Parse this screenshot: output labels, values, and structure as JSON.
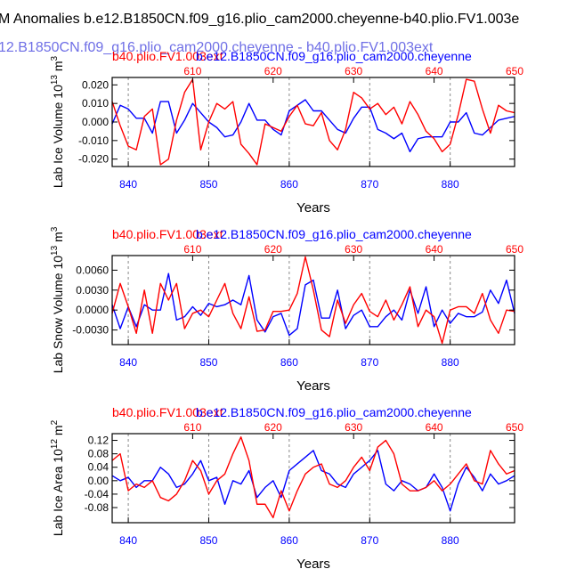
{
  "figure": {
    "main_title": "M Anomalies b.e12.B1850CN.f09_g16.plio_cam2000.cheyenne-b40.plio.FV1.003e",
    "overlay_title": "12.B1850CN.f09_g16.plio_cam2000.cheyenne - b40.plio.FV1.003ext",
    "colors": {
      "red": "#ff0000",
      "blue": "#0000ff",
      "overlay": "#6f6fe6",
      "axis": "#000000",
      "grid": "#888888"
    }
  },
  "chart_data": [
    {
      "type": "line",
      "id": "ice-volume",
      "ylabel_main": "Lab Ice Volume 10",
      "ylabel_exp": "13",
      "ylabel_unit": " m",
      "ylabel_unit_exp": "3",
      "xlabel": "Years",
      "top_title_red": "b40.plio.FV1.003ext",
      "top_title_blue": "b.e12.B1850CN.f09_g16.plio_cam2000.cheyenne",
      "bottom_axis_range": [
        838,
        888
      ],
      "bottom_ticks": [
        840,
        850,
        860,
        870,
        880
      ],
      "top_axis_range": [
        600,
        650
      ],
      "top_ticks": [
        610,
        620,
        630,
        640,
        650
      ],
      "ylim": [
        -0.024,
        0.024
      ],
      "yticks": [
        -0.02,
        -0.01,
        0.0,
        0.01,
        0.02
      ],
      "ytick_labels": [
        "-0.020",
        "-0.010",
        "0.000",
        "0.010",
        "0.020"
      ],
      "grid_x": [
        840,
        850,
        860,
        870,
        880
      ],
      "series": [
        {
          "name": "b.e12.B1850CN.f09_g16.plio_cam2000.cheyenne",
          "axis": "bottom",
          "color": "blue",
          "x": [
            838,
            839,
            840,
            841,
            842,
            843,
            844,
            845,
            846,
            847,
            848,
            849,
            850,
            851,
            852,
            853,
            854,
            855,
            856,
            857,
            858,
            859,
            860,
            861,
            862,
            863,
            864,
            865,
            866,
            867,
            868,
            869,
            870,
            871,
            872,
            873,
            874,
            875,
            876,
            877,
            878,
            879,
            880,
            881,
            882,
            883,
            884,
            885,
            886,
            887,
            888
          ],
          "y": [
            -0.001,
            0.009,
            0.007,
            0.002,
            0.002,
            -0.006,
            0.011,
            0.011,
            -0.006,
            0.001,
            0.01,
            0.005,
            0.0,
            -0.003,
            -0.008,
            -0.007,
            0.0,
            0.01,
            0.001,
            0.001,
            -0.004,
            -0.007,
            0.006,
            0.009,
            0.012,
            0.006,
            0.006,
            0.001,
            -0.004,
            -0.006,
            0.002,
            0.008,
            0.008,
            -0.004,
            -0.006,
            -0.009,
            -0.006,
            -0.016,
            -0.009,
            -0.008,
            -0.008,
            -0.008,
            0.0,
            0.0,
            0.005,
            -0.006,
            -0.007,
            -0.003,
            0.001,
            0.002,
            0.003
          ]
        },
        {
          "name": "b40.plio.FV1.003ext",
          "axis": "top",
          "color": "red",
          "x": [
            600,
            601,
            602,
            603,
            604,
            605,
            606,
            607,
            608,
            609,
            610,
            611,
            612,
            613,
            614,
            615,
            616,
            617,
            618,
            619,
            620,
            621,
            622,
            623,
            624,
            625,
            626,
            627,
            628,
            629,
            630,
            631,
            632,
            633,
            634,
            635,
            636,
            637,
            638,
            639,
            640,
            641,
            642,
            643,
            644,
            645,
            646,
            647,
            648,
            649,
            650
          ],
          "y": [
            0.011,
            -0.002,
            -0.013,
            -0.015,
            0.003,
            0.007,
            -0.023,
            -0.02,
            0.001,
            0.016,
            0.023,
            -0.015,
            0.0,
            0.01,
            0.007,
            0.011,
            -0.012,
            -0.017,
            -0.023,
            -0.001,
            -0.003,
            -0.005,
            0.003,
            0.009,
            -0.001,
            -0.002,
            0.005,
            -0.01,
            -0.015,
            -0.004,
            0.016,
            0.013,
            0.007,
            0.01,
            0.004,
            0.008,
            -0.001,
            0.011,
            0.004,
            -0.005,
            -0.009,
            -0.016,
            -0.012,
            0.004,
            0.023,
            0.022,
            0.007,
            -0.006,
            0.009,
            0.006,
            0.005
          ]
        }
      ]
    },
    {
      "type": "line",
      "id": "snow-volume",
      "ylabel_main": "Lab Snow Volume 10",
      "ylabel_exp": "13",
      "ylabel_unit": " m",
      "ylabel_unit_exp": "3",
      "xlabel": "Years",
      "top_title_red": "b40.plio.FV1.003ext",
      "top_title_blue": "b.e12.B1850CN.f09_g16.plio_cam2000.cheyenne",
      "bottom_axis_range": [
        838,
        888
      ],
      "bottom_ticks": [
        840,
        850,
        860,
        870,
        880
      ],
      "top_axis_range": [
        600,
        650
      ],
      "top_ticks": [
        610,
        620,
        630,
        640,
        650
      ],
      "ylim": [
        -0.0052,
        0.0082
      ],
      "yticks": [
        -0.003,
        0.0,
        0.003,
        0.006
      ],
      "ytick_labels": [
        "-0.0030",
        "0.0000",
        "0.0030",
        "0.0060"
      ],
      "grid_x": [
        840,
        850,
        860,
        870,
        880
      ],
      "series": [
        {
          "name": "b.e12.B1850CN.f09_g16.plio_cam2000.cheyenne",
          "axis": "bottom",
          "color": "blue",
          "x": [
            838,
            839,
            840,
            841,
            842,
            843,
            844,
            845,
            846,
            847,
            848,
            849,
            850,
            851,
            852,
            853,
            854,
            855,
            856,
            857,
            858,
            859,
            860,
            861,
            862,
            863,
            864,
            865,
            866,
            867,
            868,
            869,
            870,
            871,
            872,
            873,
            874,
            875,
            876,
            877,
            878,
            879,
            880,
            881,
            882,
            883,
            884,
            885,
            886,
            887,
            888
          ],
          "y": [
            0.0008,
            -0.0028,
            0.0005,
            -0.0025,
            0.0008,
            0.0,
            0.0,
            0.0055,
            -0.0015,
            -0.001,
            0.0005,
            -0.0008,
            0.001,
            0.0005,
            0.0008,
            0.0015,
            0.0008,
            0.0052,
            -0.0015,
            -0.0033,
            -0.001,
            -0.0005,
            -0.0038,
            -0.0028,
            0.0038,
            0.0045,
            -0.0012,
            -0.0012,
            0.003,
            -0.0028,
            -0.0008,
            0.0,
            -0.0025,
            -0.0025,
            -0.001,
            0.0,
            -0.0015,
            0.003,
            -0.0005,
            0.0035,
            -0.0025,
            0.0,
            -0.002,
            -0.0005,
            -0.001,
            -0.001,
            -0.0003,
            0.003,
            0.001,
            0.0045,
            -0.0005
          ]
        },
        {
          "name": "b40.plio.FV1.003ext",
          "axis": "top",
          "color": "red",
          "x": [
            600,
            601,
            602,
            603,
            604,
            605,
            606,
            607,
            608,
            609,
            610,
            611,
            612,
            613,
            614,
            615,
            616,
            617,
            618,
            619,
            620,
            621,
            622,
            623,
            624,
            625,
            626,
            627,
            628,
            629,
            630,
            631,
            632,
            633,
            634,
            635,
            636,
            637,
            638,
            639,
            640,
            641,
            642,
            643,
            644,
            645,
            646,
            647,
            648,
            649,
            650
          ],
          "y": [
            -0.0005,
            0.004,
            0.0005,
            -0.0035,
            0.003,
            -0.0035,
            0.004,
            0.0015,
            0.004,
            -0.0028,
            -0.0005,
            0.0,
            -0.001,
            0.0015,
            0.004,
            -0.0005,
            -0.0028,
            0.002,
            -0.0032,
            -0.003,
            -0.0002,
            -0.0002,
            0.0,
            0.0025,
            0.008,
            0.003,
            -0.003,
            -0.004,
            0.0015,
            -0.002,
            0.0008,
            0.0025,
            -0.0002,
            -0.001,
            0.0015,
            -0.0015,
            0.0008,
            0.0035,
            -0.0025,
            0.0,
            -0.001,
            -0.005,
            0.0,
            0.0005,
            0.0005,
            -0.0005,
            0.0025,
            -0.0015,
            -0.0035,
            0.0,
            -0.0002
          ]
        }
      ]
    },
    {
      "type": "line",
      "id": "ice-area",
      "ylabel_main": "Lab Ice Area 10",
      "ylabel_exp": "12",
      "ylabel_unit": " m",
      "ylabel_unit_exp": "2",
      "xlabel": "Years",
      "top_title_red": "b40.plio.FV1.003ext",
      "top_title_blue": "b.e12.B1850CN.f09_g16.plio_cam2000.cheyenne",
      "bottom_axis_range": [
        838,
        888
      ],
      "bottom_ticks": [
        840,
        850,
        860,
        870,
        880
      ],
      "top_axis_range": [
        600,
        650
      ],
      "top_ticks": [
        610,
        620,
        630,
        640,
        650
      ],
      "ylim": [
        -0.125,
        0.14
      ],
      "yticks": [
        -0.08,
        -0.04,
        0.0,
        0.04,
        0.08,
        0.12
      ],
      "ytick_labels": [
        "-0.08",
        "-0.04",
        "0.00",
        "0.04",
        "0.08",
        "0.12"
      ],
      "grid_x": [
        840,
        850,
        860,
        870,
        880
      ],
      "series": [
        {
          "name": "b.e12.B1850CN.f09_g16.plio_cam2000.cheyenne",
          "axis": "bottom",
          "color": "blue",
          "x": [
            838,
            839,
            840,
            841,
            842,
            843,
            844,
            845,
            846,
            847,
            848,
            849,
            850,
            851,
            852,
            853,
            854,
            855,
            856,
            857,
            858,
            859,
            860,
            861,
            862,
            863,
            864,
            865,
            866,
            867,
            868,
            869,
            870,
            871,
            872,
            873,
            874,
            875,
            876,
            877,
            878,
            879,
            880,
            881,
            882,
            883,
            884,
            885,
            886,
            887,
            888
          ],
          "y": [
            0.015,
            0.0,
            0.01,
            -0.02,
            0.0,
            0.0,
            0.04,
            0.02,
            -0.02,
            -0.01,
            0.02,
            0.06,
            0.0,
            0.01,
            -0.07,
            0.0,
            -0.01,
            0.03,
            -0.05,
            -0.02,
            0.0,
            -0.05,
            0.03,
            0.05,
            0.07,
            0.09,
            0.03,
            0.02,
            -0.01,
            -0.02,
            0.02,
            0.04,
            0.06,
            0.09,
            -0.01,
            -0.03,
            0.0,
            -0.01,
            -0.03,
            -0.02,
            0.02,
            -0.02,
            -0.09,
            -0.01,
            0.04,
            0.01,
            -0.03,
            0.02,
            -0.01,
            0.0,
            0.015
          ]
        },
        {
          "name": "b40.plio.FV1.003ext",
          "axis": "top",
          "color": "red",
          "x": [
            600,
            601,
            602,
            603,
            604,
            605,
            606,
            607,
            608,
            609,
            610,
            611,
            612,
            613,
            614,
            615,
            616,
            617,
            618,
            619,
            620,
            621,
            622,
            623,
            624,
            625,
            626,
            627,
            628,
            629,
            630,
            631,
            632,
            633,
            634,
            635,
            636,
            637,
            638,
            639,
            640,
            641,
            642,
            643,
            644,
            645,
            646,
            647,
            648,
            649,
            650
          ],
          "y": [
            0.06,
            0.08,
            -0.03,
            -0.01,
            -0.02,
            0.0,
            -0.05,
            -0.06,
            -0.04,
            0.0,
            0.06,
            0.03,
            -0.04,
            0.0,
            0.02,
            0.08,
            0.13,
            0.06,
            -0.07,
            -0.07,
            -0.11,
            -0.03,
            -0.09,
            -0.03,
            0.02,
            0.04,
            0.05,
            -0.01,
            -0.02,
            0.0,
            0.04,
            0.07,
            0.03,
            0.1,
            0.12,
            0.08,
            -0.01,
            -0.03,
            -0.03,
            -0.02,
            0.0,
            -0.03,
            -0.01,
            0.02,
            0.05,
            0.0,
            -0.01,
            0.09,
            0.05,
            0.02,
            0.03
          ]
        }
      ]
    }
  ]
}
